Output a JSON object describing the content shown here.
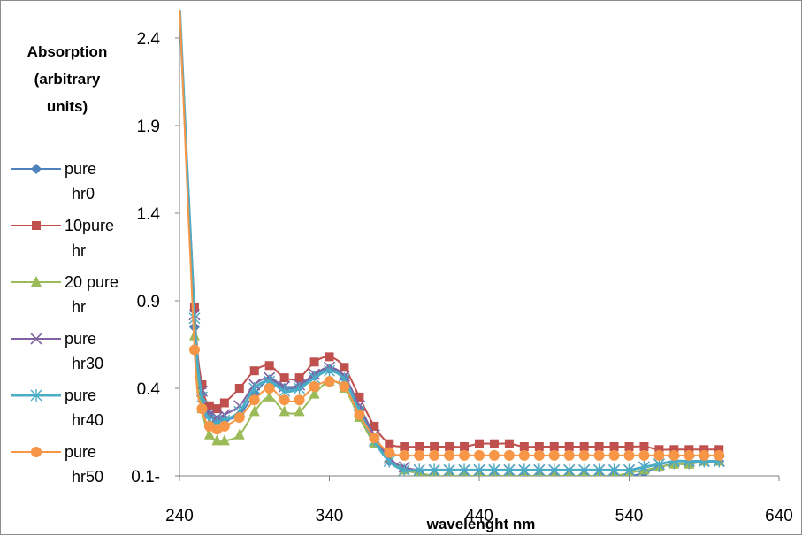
{
  "chart_data": {
    "type": "line",
    "xlabel": "wavelenght nm",
    "ylabel_lines": [
      "Absorption",
      "(arbitrary",
      "units)"
    ],
    "xlim": [
      240,
      640
    ],
    "ylim": [
      0.1,
      2.6
    ],
    "x_ticks": [
      "240",
      "340",
      "440",
      "540",
      "640"
    ],
    "x_tick_values": [
      240,
      340,
      440,
      540,
      640
    ],
    "y_ticks": [
      "0.1-",
      "0.4",
      "0.9",
      "1.4",
      "1.9",
      "2.4"
    ],
    "y_tick_values": [
      0.1,
      0.4,
      0.9,
      1.4,
      1.9,
      2.4
    ],
    "legend_position": "left",
    "x": [
      240,
      250,
      255,
      260,
      265,
      270,
      280,
      290,
      300,
      310,
      320,
      330,
      340,
      350,
      360,
      370,
      380,
      390,
      400,
      410,
      420,
      430,
      440,
      450,
      460,
      470,
      480,
      490,
      500,
      510,
      520,
      530,
      540,
      550,
      560,
      570,
      580,
      590,
      600
    ],
    "series": [
      {
        "name": "pure hr0",
        "legend_lines": [
          "pure",
          "hr0"
        ],
        "color": "#4f81bd",
        "marker": "diamond",
        "values": [
          2.6,
          0.75,
          0.38,
          0.31,
          0.29,
          0.29,
          0.31,
          0.38,
          0.45,
          0.4,
          0.41,
          0.47,
          0.51,
          0.46,
          0.33,
          0.23,
          0.15,
          0.12,
          0.11,
          0.1,
          0.1,
          0.1,
          0.1,
          0.1,
          0.1,
          0.1,
          0.1,
          0.1,
          0.1,
          0.1,
          0.1,
          0.1,
          0.1,
          0.11,
          0.13,
          0.14,
          0.14,
          0.15,
          0.15
        ]
      },
      {
        "name": "10 pure hr",
        "legend_lines": [
          "10pure",
          "hr"
        ],
        "color": "#c0504d",
        "marker": "square",
        "values": [
          2.6,
          0.86,
          0.42,
          0.34,
          0.33,
          0.35,
          0.4,
          0.5,
          0.53,
          0.46,
          0.46,
          0.55,
          0.58,
          0.52,
          0.37,
          0.27,
          0.21,
          0.2,
          0.2,
          0.2,
          0.2,
          0.2,
          0.21,
          0.21,
          0.21,
          0.2,
          0.2,
          0.2,
          0.2,
          0.2,
          0.2,
          0.2,
          0.2,
          0.2,
          0.19,
          0.19,
          0.19,
          0.19,
          0.19
        ]
      },
      {
        "name": "20 pure hr",
        "legend_lines": [
          "20 pure",
          "hr"
        ],
        "color": "#9bbb59",
        "marker": "triangle",
        "values": [
          2.6,
          0.7,
          0.33,
          0.24,
          0.22,
          0.22,
          0.24,
          0.32,
          0.37,
          0.32,
          0.32,
          0.38,
          0.44,
          0.4,
          0.3,
          0.21,
          0.16,
          0.12,
          0.11,
          0.1,
          0.1,
          0.1,
          0.1,
          0.1,
          0.1,
          0.1,
          0.1,
          0.1,
          0.1,
          0.1,
          0.1,
          0.1,
          0.11,
          0.12,
          0.13,
          0.14,
          0.14,
          0.15,
          0.15
        ]
      },
      {
        "name": "pure hr30",
        "legend_lines": [
          "pure",
          "hr30"
        ],
        "color": "#8064a2",
        "marker": "x",
        "values": [
          2.6,
          0.82,
          0.39,
          0.31,
          0.3,
          0.31,
          0.34,
          0.42,
          0.46,
          0.41,
          0.42,
          0.48,
          0.52,
          0.47,
          0.34,
          0.24,
          0.16,
          0.13,
          0.12,
          0.12,
          0.12,
          0.12,
          0.12,
          0.12,
          0.12,
          0.12,
          0.12,
          0.12,
          0.12,
          0.12,
          0.12,
          0.12,
          0.12,
          0.13,
          0.14,
          0.15,
          0.15,
          0.15,
          0.15
        ]
      },
      {
        "name": "pure hr40",
        "legend_lines": [
          "pure",
          "hr40"
        ],
        "color": "#4bacc6",
        "marker": "asterisk",
        "values": [
          2.6,
          0.8,
          0.37,
          0.29,
          0.28,
          0.29,
          0.32,
          0.4,
          0.44,
          0.39,
          0.4,
          0.46,
          0.5,
          0.45,
          0.32,
          0.22,
          0.15,
          0.12,
          0.12,
          0.12,
          0.12,
          0.12,
          0.12,
          0.12,
          0.12,
          0.12,
          0.12,
          0.12,
          0.12,
          0.12,
          0.12,
          0.12,
          0.12,
          0.13,
          0.14,
          0.15,
          0.15,
          0.15,
          0.15
        ]
      },
      {
        "name": "pure hr50",
        "legend_lines": [
          "pure",
          "hr50"
        ],
        "color": "#f79646",
        "marker": "circle",
        "values": [
          2.6,
          0.62,
          0.33,
          0.27,
          0.26,
          0.27,
          0.3,
          0.36,
          0.4,
          0.36,
          0.36,
          0.41,
          0.44,
          0.41,
          0.31,
          0.23,
          0.18,
          0.17,
          0.17,
          0.17,
          0.17,
          0.17,
          0.17,
          0.17,
          0.17,
          0.17,
          0.17,
          0.17,
          0.17,
          0.17,
          0.17,
          0.17,
          0.17,
          0.17,
          0.17,
          0.17,
          0.17,
          0.17,
          0.17
        ]
      }
    ]
  }
}
